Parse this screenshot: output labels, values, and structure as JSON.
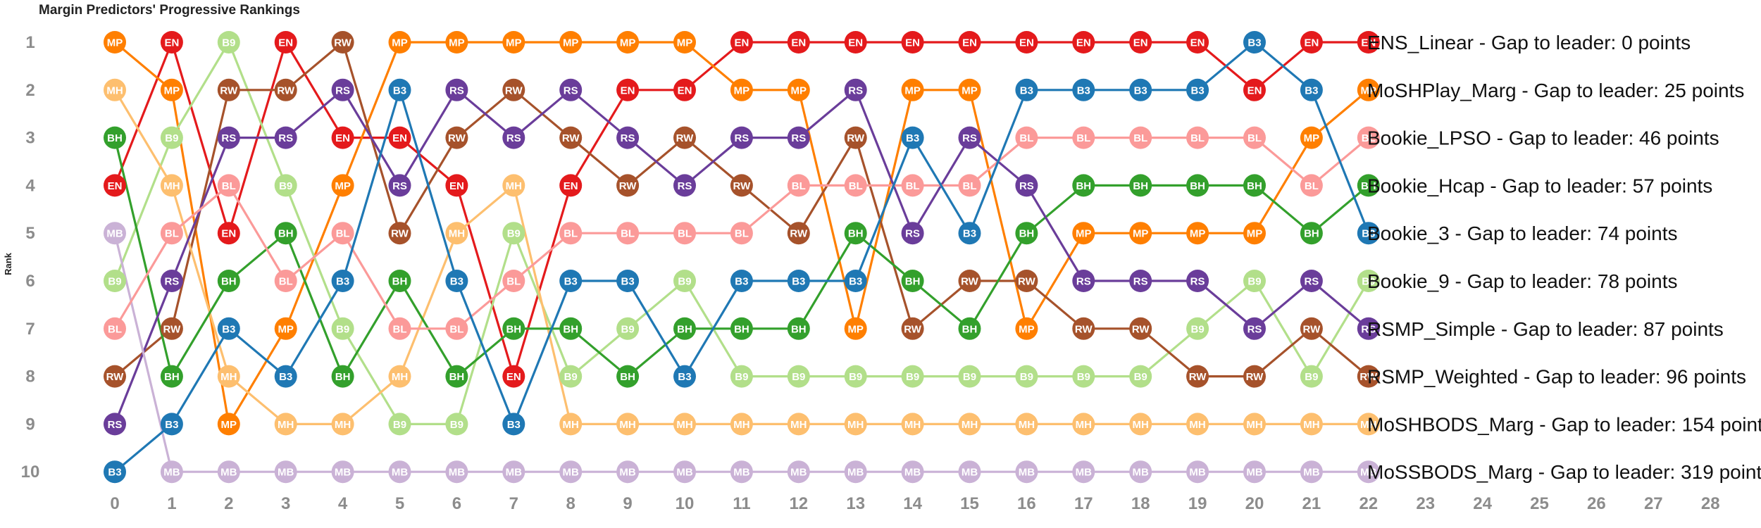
{
  "chart_data": {
    "type": "line",
    "title": "Margin Predictors' Progressive Rankings",
    "ylabel": "Rank",
    "xlabel": "",
    "x_ticks": [
      0,
      1,
      2,
      3,
      4,
      5,
      6,
      7,
      8,
      9,
      10,
      11,
      12,
      13,
      14,
      15,
      16,
      17,
      18,
      19,
      20,
      21,
      22,
      23,
      24,
      25,
      26,
      27,
      28
    ],
    "y_ticks": [
      1,
      2,
      3,
      4,
      5,
      6,
      7,
      8,
      9,
      10
    ],
    "xlim": [
      0,
      28
    ],
    "ylim": [
      10,
      1
    ],
    "y_inverted": true,
    "grid": false,
    "legend": "none",
    "series": [
      {
        "name": "EN",
        "color": "#e41a1c",
        "values": [
          4,
          1,
          5,
          1,
          3,
          3,
          4,
          8,
          4,
          2,
          2,
          1,
          1,
          1,
          1,
          1,
          1,
          1,
          1,
          1,
          2,
          1,
          1
        ]
      },
      {
        "name": "MP",
        "color": "#ff7f00",
        "values": [
          1,
          2,
          9,
          7,
          4,
          1,
          1,
          1,
          1,
          1,
          1,
          2,
          2,
          7,
          2,
          2,
          7,
          5,
          5,
          5,
          5,
          3,
          2
        ]
      },
      {
        "name": "B9",
        "color": "#b2df8a",
        "values": [
          6,
          3,
          1,
          4,
          7,
          9,
          9,
          5,
          8,
          7,
          6,
          8,
          8,
          8,
          8,
          8,
          8,
          8,
          8,
          7,
          6,
          8,
          6
        ]
      },
      {
        "name": "RW",
        "color": "#a6522b",
        "values": [
          8,
          7,
          2,
          2,
          1,
          5,
          3,
          2,
          3,
          4,
          3,
          4,
          5,
          3,
          7,
          6,
          6,
          7,
          7,
          8,
          8,
          7,
          8
        ]
      },
      {
        "name": "MH",
        "color": "#fdbf6f",
        "values": [
          2,
          4,
          8,
          9,
          9,
          8,
          5,
          4,
          9,
          9,
          9,
          9,
          9,
          9,
          9,
          9,
          9,
          9,
          9,
          9,
          9,
          9,
          9
        ]
      },
      {
        "name": "BH",
        "color": "#33a02c",
        "values": [
          3,
          8,
          6,
          5,
          8,
          6,
          8,
          7,
          7,
          8,
          7,
          7,
          7,
          5,
          6,
          7,
          5,
          4,
          4,
          4,
          4,
          5,
          4
        ]
      },
      {
        "name": "RS",
        "color": "#6a3d9a",
        "values": [
          9,
          6,
          3,
          3,
          2,
          4,
          2,
          3,
          2,
          3,
          4,
          3,
          3,
          2,
          5,
          3,
          4,
          6,
          6,
          6,
          7,
          6,
          7
        ]
      },
      {
        "name": "MB",
        "color": "#cab2d6",
        "values": [
          5,
          10,
          10,
          10,
          10,
          10,
          10,
          10,
          10,
          10,
          10,
          10,
          10,
          10,
          10,
          10,
          10,
          10,
          10,
          10,
          10,
          10,
          10
        ]
      },
      {
        "name": "BL",
        "color": "#fb9a99",
        "values": [
          7,
          5,
          4,
          6,
          5,
          7,
          7,
          6,
          5,
          5,
          5,
          5,
          4,
          4,
          4,
          4,
          3,
          3,
          3,
          3,
          3,
          4,
          3
        ]
      },
      {
        "name": "B3",
        "color": "#1f78b4",
        "values": [
          10,
          9,
          7,
          8,
          6,
          2,
          6,
          9,
          6,
          6,
          8,
          6,
          6,
          6,
          3,
          5,
          2,
          2,
          2,
          2,
          1,
          2,
          5
        ]
      }
    ],
    "annotations": [
      "ENS_Linear - Gap to leader: 0 points",
      "MoSHPlay_Marg - Gap to leader: 25 points",
      "Bookie_LPSO - Gap to leader: 46 points",
      "Bookie_Hcap - Gap to leader: 57 points",
      "Bookie_3 - Gap to leader: 74 points",
      "Bookie_9 - Gap to leader: 78 points",
      "RSMP_Simple - Gap to leader: 87 points",
      "RSMP_Weighted - Gap to leader: 96 points",
      "MoSHBODS_Marg - Gap to leader: 154 point",
      "MoSSBODS_Marg - Gap to leader: 319 point"
    ]
  }
}
